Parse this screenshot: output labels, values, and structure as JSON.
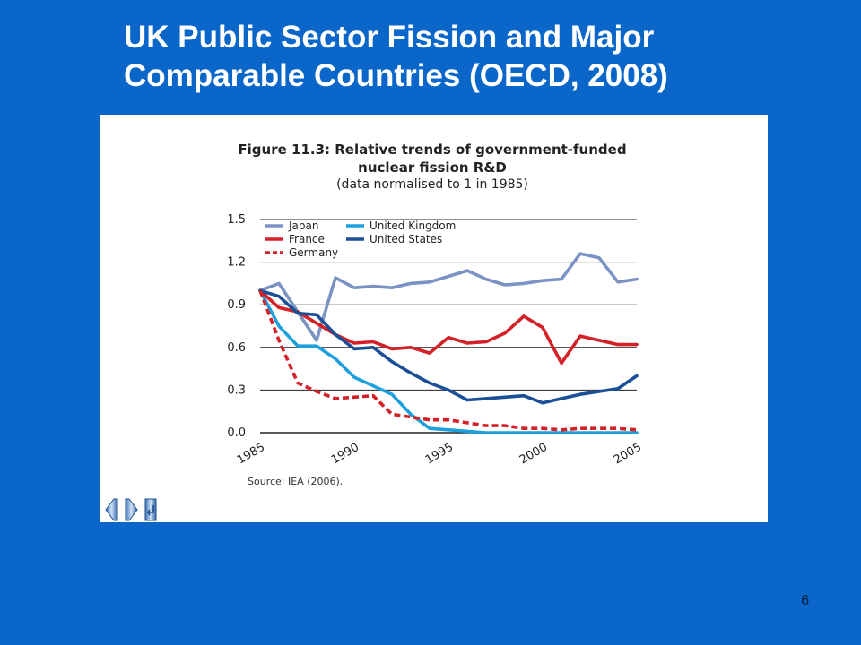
{
  "slide": {
    "title_line1": "UK Public Sector Fission and Major",
    "title_line2": "Comparable Countries (OECD, 2008)",
    "page_number": "6"
  },
  "figure": {
    "title_line1": "Figure 11.3: Relative trends of government-funded",
    "title_line2": "nuclear fission R&D",
    "subtitle": "(data normalised to 1 in 1985)",
    "source": "Source: IEA (2006)."
  },
  "nav_icons": [
    "previous-icon",
    "next-icon",
    "return-icon"
  ],
  "chart_data": {
    "type": "line",
    "xlim": [
      1985,
      2005
    ],
    "ylim": [
      0,
      1.5
    ],
    "y_ticks": [
      "0.0",
      "0.3",
      "0.6",
      "0.9",
      "1.2",
      "1.5"
    ],
    "x_ticks": [
      "1985",
      "1990",
      "1995",
      "2000",
      "2005"
    ],
    "grid": "horizontal",
    "legend_position": "top-left",
    "x": [
      1985,
      1986,
      1987,
      1988,
      1989,
      1990,
      1991,
      1992,
      1993,
      1994,
      1995,
      1996,
      1997,
      1998,
      1999,
      2000,
      2001,
      2002,
      2003,
      2004,
      2005
    ],
    "series": [
      {
        "name": "Japan",
        "color": "#7b93c4",
        "dashed": false,
        "values": [
          1.0,
          1.05,
          0.85,
          0.65,
          1.09,
          1.02,
          1.03,
          1.02,
          1.05,
          1.06,
          1.1,
          1.14,
          1.08,
          1.04,
          1.05,
          1.07,
          1.08,
          1.26,
          1.23,
          1.06,
          1.08
        ]
      },
      {
        "name": "United Kingdom",
        "color": "#1ea0dc",
        "dashed": false,
        "values": [
          1.0,
          0.75,
          0.61,
          0.61,
          0.52,
          0.39,
          0.33,
          0.27,
          0.13,
          0.03,
          0.02,
          0.01,
          0.0,
          0.0,
          0.0,
          0.0,
          0.0,
          0.0,
          0.0,
          0.0,
          0.0
        ]
      },
      {
        "name": "France",
        "color": "#d42027",
        "dashed": false,
        "values": [
          1.0,
          0.88,
          0.85,
          0.77,
          0.69,
          0.63,
          0.64,
          0.59,
          0.6,
          0.56,
          0.67,
          0.63,
          0.64,
          0.7,
          0.82,
          0.74,
          0.49,
          0.68,
          0.65,
          0.62,
          0.62
        ]
      },
      {
        "name": "United States",
        "color": "#1b4f96",
        "dashed": false,
        "values": [
          1.0,
          0.96,
          0.84,
          0.83,
          0.69,
          0.59,
          0.6,
          0.5,
          0.42,
          0.35,
          0.3,
          0.23,
          0.24,
          0.25,
          0.26,
          0.21,
          0.24,
          0.27,
          0.29,
          0.31,
          0.4
        ]
      },
      {
        "name": "Germany",
        "color": "#d42027",
        "dashed": true,
        "values": [
          1.0,
          0.65,
          0.35,
          0.29,
          0.24,
          0.25,
          0.26,
          0.13,
          0.11,
          0.09,
          0.09,
          0.07,
          0.05,
          0.05,
          0.03,
          0.03,
          0.02,
          0.03,
          0.03,
          0.03,
          0.02
        ]
      }
    ]
  }
}
